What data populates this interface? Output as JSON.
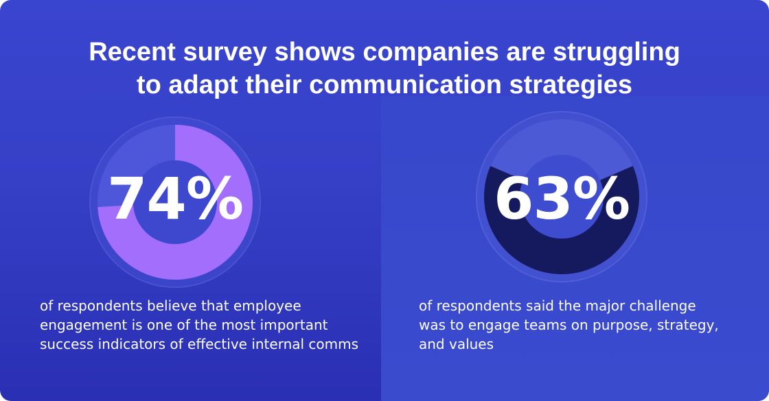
{
  "title": {
    "line1": "Recent survey shows companies are struggling",
    "line2": "to adapt their communication strategies"
  },
  "colors": {
    "background": "#3540c7",
    "stat1_fill": "#a46efd",
    "stat2_fill": "#151a5e",
    "track": "#4b55d6",
    "halo": "#5560d8"
  },
  "chart_data": [
    {
      "type": "pie",
      "variant": "donut",
      "values": [
        74,
        26
      ],
      "value_label": "74%",
      "caption": "of respondents believe that employee\nengagement is one of the most important\nsuccess indicators of effective internal comms"
    },
    {
      "type": "pie",
      "variant": "donut",
      "values": [
        63,
        37
      ],
      "value_label": "63%",
      "caption": "of respondents said the major challenge\nwas to engage teams on purpose, strategy,\nand values"
    }
  ]
}
